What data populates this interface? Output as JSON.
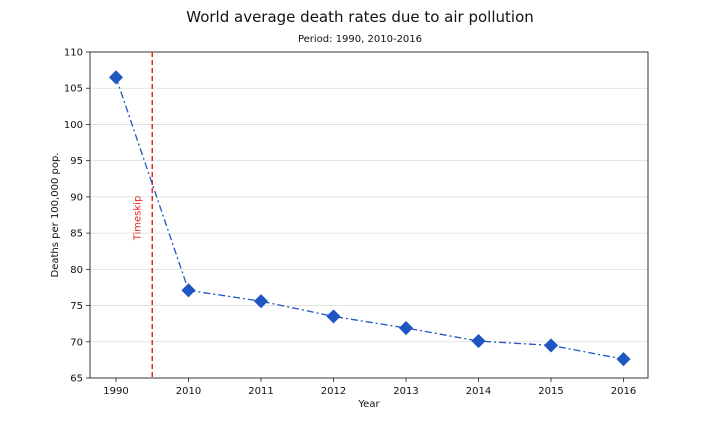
{
  "chart_data": {
    "type": "line",
    "title": "World average death rates due to air pollution",
    "subtitle": "Period: 1990, 2010-2016",
    "xlabel": "Year",
    "ylabel": "Deaths per 100,000 pop.",
    "categories": [
      "1990",
      "2010",
      "2011",
      "2012",
      "2013",
      "2014",
      "2015",
      "2016"
    ],
    "values": [
      106.5,
      77.1,
      75.6,
      73.5,
      71.9,
      70.1,
      69.5,
      67.6
    ],
    "ylim": [
      65,
      110
    ],
    "yticks": [
      65,
      70,
      75,
      80,
      85,
      90,
      95,
      100,
      105,
      110
    ],
    "grid": "horizontal",
    "series_color": "#1f56c1",
    "line_style": "dash-dot",
    "marker": "diamond",
    "annotation": {
      "text": "Timeskip",
      "color": "#e8241c",
      "line_style": "dashed"
    }
  }
}
